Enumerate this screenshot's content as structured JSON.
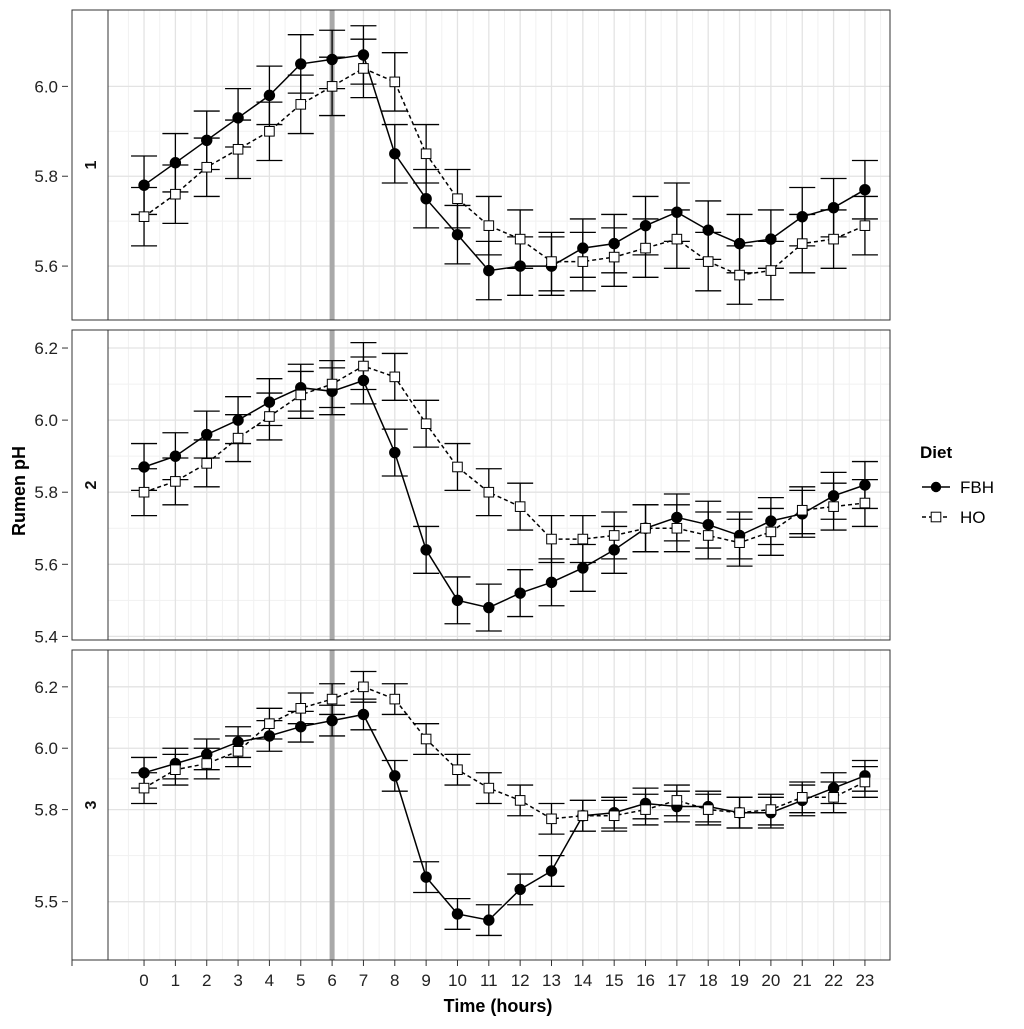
{
  "chart_data": {
    "type": "line",
    "xlabel": "Time (hours)",
    "ylabel": "Rumen pH",
    "x": [
      0,
      1,
      2,
      3,
      4,
      5,
      6,
      7,
      8,
      9,
      10,
      11,
      12,
      13,
      14,
      15,
      16,
      17,
      18,
      19,
      20,
      21,
      22,
      23
    ],
    "x_ticks": [
      "0",
      "1",
      "2",
      "3",
      "4",
      "5",
      "6",
      "7",
      "8",
      "9",
      "10",
      "11",
      "12",
      "13",
      "14",
      "15",
      "16",
      "17",
      "18",
      "19",
      "20",
      "21",
      "22",
      "23"
    ],
    "vline_x": 6,
    "legend": {
      "title": "Diet",
      "position": "right"
    },
    "grid": true,
    "series_styles": [
      {
        "name": "FBH",
        "line": "solid",
        "marker": "filled-circle",
        "color": "#000000"
      },
      {
        "name": "HO",
        "line": "dashed",
        "marker": "open-square",
        "color": "#000000"
      }
    ],
    "panels": [
      {
        "strip": "1",
        "ylim": [
          5.48,
          6.17
        ],
        "y_ticks": [
          5.6,
          5.8,
          6.0
        ],
        "y_tick_labels": [
          "5.6",
          "5.8",
          "6.0"
        ],
        "series": [
          {
            "name": "FBH",
            "values": [
              5.78,
              5.83,
              5.88,
              5.93,
              5.98,
              6.05,
              6.06,
              6.07,
              5.85,
              5.75,
              5.67,
              5.59,
              5.6,
              5.6,
              5.64,
              5.65,
              5.69,
              5.72,
              5.68,
              5.65,
              5.66,
              5.71,
              5.73,
              5.77
            ],
            "error": [
              0.065,
              0.065,
              0.065,
              0.065,
              0.065,
              0.065,
              0.065,
              0.065,
              0.065,
              0.065,
              0.065,
              0.065,
              0.065,
              0.065,
              0.065,
              0.065,
              0.065,
              0.065,
              0.065,
              0.065,
              0.065,
              0.065,
              0.065,
              0.065
            ]
          },
          {
            "name": "HO",
            "values": [
              5.71,
              5.76,
              5.82,
              5.86,
              5.9,
              5.96,
              6.0,
              6.04,
              6.01,
              5.85,
              5.75,
              5.69,
              5.66,
              5.61,
              5.61,
              5.62,
              5.64,
              5.66,
              5.61,
              5.58,
              5.59,
              5.65,
              5.66,
              5.69
            ],
            "error": [
              0.065,
              0.065,
              0.065,
              0.065,
              0.065,
              0.065,
              0.065,
              0.065,
              0.065,
              0.065,
              0.065,
              0.065,
              0.065,
              0.065,
              0.065,
              0.065,
              0.065,
              0.065,
              0.065,
              0.065,
              0.065,
              0.065,
              0.065,
              0.065
            ]
          }
        ]
      },
      {
        "strip": "2",
        "ylim": [
          5.39,
          6.25
        ],
        "y_ticks": [
          5.4,
          5.6,
          5.8,
          6.0,
          6.2
        ],
        "y_tick_labels": [
          "5.4",
          "5.6",
          "5.8",
          "6.0",
          "6.2"
        ],
        "series": [
          {
            "name": "FBH",
            "values": [
              5.87,
              5.9,
              5.96,
              6.0,
              6.05,
              6.09,
              6.08,
              6.11,
              5.91,
              5.64,
              5.5,
              5.48,
              5.52,
              5.55,
              5.59,
              5.64,
              5.7,
              5.73,
              5.71,
              5.68,
              5.72,
              5.74,
              5.79,
              5.82
            ],
            "error": [
              0.065,
              0.065,
              0.065,
              0.065,
              0.065,
              0.065,
              0.065,
              0.065,
              0.065,
              0.065,
              0.065,
              0.065,
              0.065,
              0.065,
              0.065,
              0.065,
              0.065,
              0.065,
              0.065,
              0.065,
              0.065,
              0.065,
              0.065,
              0.065
            ]
          },
          {
            "name": "HO",
            "values": [
              5.8,
              5.83,
              5.88,
              5.95,
              6.01,
              6.07,
              6.1,
              6.15,
              6.12,
              5.99,
              5.87,
              5.8,
              5.76,
              5.67,
              5.67,
              5.68,
              5.7,
              5.7,
              5.68,
              5.66,
              5.69,
              5.75,
              5.76,
              5.77
            ],
            "error": [
              0.065,
              0.065,
              0.065,
              0.065,
              0.065,
              0.065,
              0.065,
              0.065,
              0.065,
              0.065,
              0.065,
              0.065,
              0.065,
              0.065,
              0.065,
              0.065,
              0.065,
              0.065,
              0.065,
              0.065,
              0.065,
              0.065,
              0.065,
              0.065
            ]
          }
        ]
      },
      {
        "strip": "3",
        "ylim": [
          5.31,
          6.32
        ],
        "y_ticks": [
          5.5,
          5.8,
          6.0,
          6.2
        ],
        "y_tick_labels": [
          "5.5",
          "5.8",
          "6.0",
          "6.2"
        ],
        "series": [
          {
            "name": "FBH",
            "values": [
              5.92,
              5.95,
              5.98,
              6.02,
              6.04,
              6.07,
              6.09,
              6.11,
              5.91,
              5.58,
              5.46,
              5.44,
              5.54,
              5.6,
              5.78,
              5.79,
              5.82,
              5.81,
              5.81,
              5.79,
              5.79,
              5.83,
              5.87,
              5.91
            ],
            "error": [
              0.05,
              0.05,
              0.05,
              0.05,
              0.05,
              0.05,
              0.05,
              0.05,
              0.05,
              0.05,
              0.05,
              0.05,
              0.05,
              0.05,
              0.05,
              0.05,
              0.05,
              0.05,
              0.05,
              0.05,
              0.05,
              0.05,
              0.05,
              0.05
            ]
          },
          {
            "name": "HO",
            "values": [
              5.87,
              5.93,
              5.95,
              5.99,
              6.08,
              6.13,
              6.16,
              6.2,
              6.16,
              6.03,
              5.93,
              5.87,
              5.83,
              5.77,
              5.78,
              5.78,
              5.8,
              5.83,
              5.8,
              5.79,
              5.8,
              5.84,
              5.84,
              5.89
            ],
            "error": [
              0.05,
              0.05,
              0.05,
              0.05,
              0.05,
              0.05,
              0.05,
              0.05,
              0.05,
              0.05,
              0.05,
              0.05,
              0.05,
              0.05,
              0.05,
              0.05,
              0.05,
              0.05,
              0.05,
              0.05,
              0.05,
              0.05,
              0.05,
              0.05
            ]
          }
        ]
      }
    ]
  }
}
